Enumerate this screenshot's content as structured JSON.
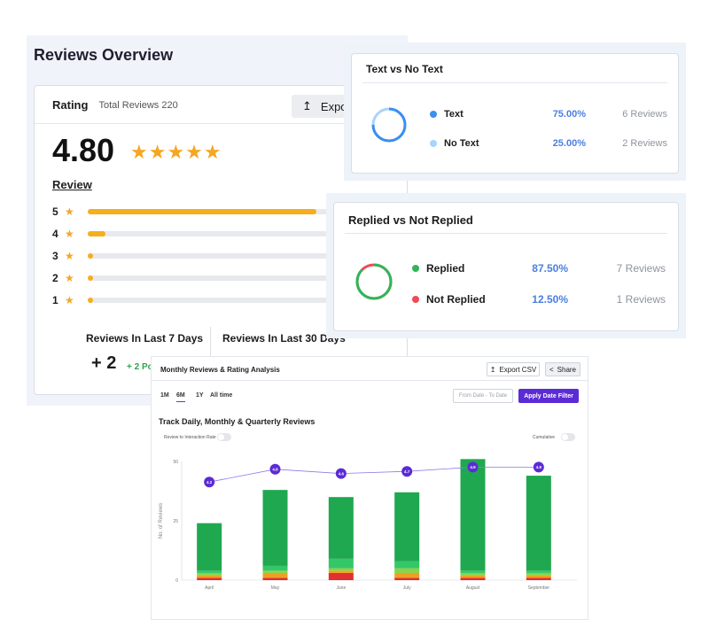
{
  "overview": {
    "title": "Reviews Overview",
    "rating_label": "Rating",
    "total_reviews": "Total Reviews 220",
    "export_label": "Export",
    "rating_value": "4.80",
    "stars": "★★★★★",
    "review_link": "Review",
    "distribution": [
      {
        "star": "5",
        "fraction": 0.92
      },
      {
        "star": "4",
        "fraction": 0.07
      },
      {
        "star": "3",
        "fraction": 0.02
      },
      {
        "star": "2",
        "fraction": 0.02
      },
      {
        "star": "1",
        "fraction": 0.02
      }
    ],
    "last7_label": "Reviews In Last 7 Days",
    "last30_label": "Reviews In Last 30 Days",
    "last7_value": "+ 2",
    "last7_sub": "+ 2 Po"
  },
  "text_vs_no_text": {
    "title": "Text vs No Text",
    "items": [
      {
        "name": "Text",
        "pct": "75.00%",
        "count": "6  Reviews",
        "color": "#3b8ff0"
      },
      {
        "name": "No Text",
        "pct": "25.00%",
        "count": "2  Reviews",
        "color": "#a9d4fb"
      }
    ]
  },
  "replied": {
    "title": "Replied vs Not Replied",
    "items": [
      {
        "name": "Replied",
        "pct": "87.50%",
        "count": "7  Reviews",
        "color": "#2fb65a"
      },
      {
        "name": "Not Replied",
        "pct": "12.50%",
        "count": "1  Reviews",
        "color": "#ee4b55"
      }
    ]
  },
  "monthly": {
    "title": "Monthly Reviews & Rating Analysis",
    "export_csv": "Export CSV",
    "share": "Share",
    "tabs": [
      "1M",
      "6M",
      "1Y",
      "All time"
    ],
    "active_tab": "6M",
    "date_placeholder": "From Date - To Date",
    "apply_label": "Apply Date Filter",
    "track_title": "Track Daily, Monthly & Quarterly Reviews",
    "toggle_left": "Review to Interaction Rate",
    "toggle_right": "Cumulative",
    "ylabel": "No. of Reviews"
  },
  "chart_data": {
    "type": "bar",
    "categories": [
      "April",
      "May",
      "June",
      "July",
      "August",
      "September"
    ],
    "ylim": [
      0,
      50
    ],
    "yticks": [
      0,
      25,
      50
    ],
    "ylabel": "No. of Reviews",
    "series": [
      {
        "values": [
          1,
          1,
          3,
          1,
          1,
          1
        ],
        "color": "#e03030"
      },
      {
        "values": [
          1,
          2,
          1,
          2,
          1,
          1
        ],
        "color": "#f0a020"
      },
      {
        "values": [
          1,
          1,
          1,
          2,
          1,
          1
        ],
        "color": "#8bd34a"
      },
      {
        "values": [
          1,
          2,
          4,
          3,
          1,
          1
        ],
        "color": "#34c768"
      },
      {
        "values": [
          20,
          32,
          26,
          29,
          47,
          40
        ],
        "color": "#1fa84f"
      }
    ],
    "rating_line": {
      "values": [
        4.2,
        4.8,
        4.6,
        4.7,
        4.9,
        4.9
      ],
      "labels": [
        "4.2",
        "4.8",
        "4.6",
        "4.7",
        "4.9",
        "4.9"
      ],
      "color": "#5b2bd6"
    }
  }
}
